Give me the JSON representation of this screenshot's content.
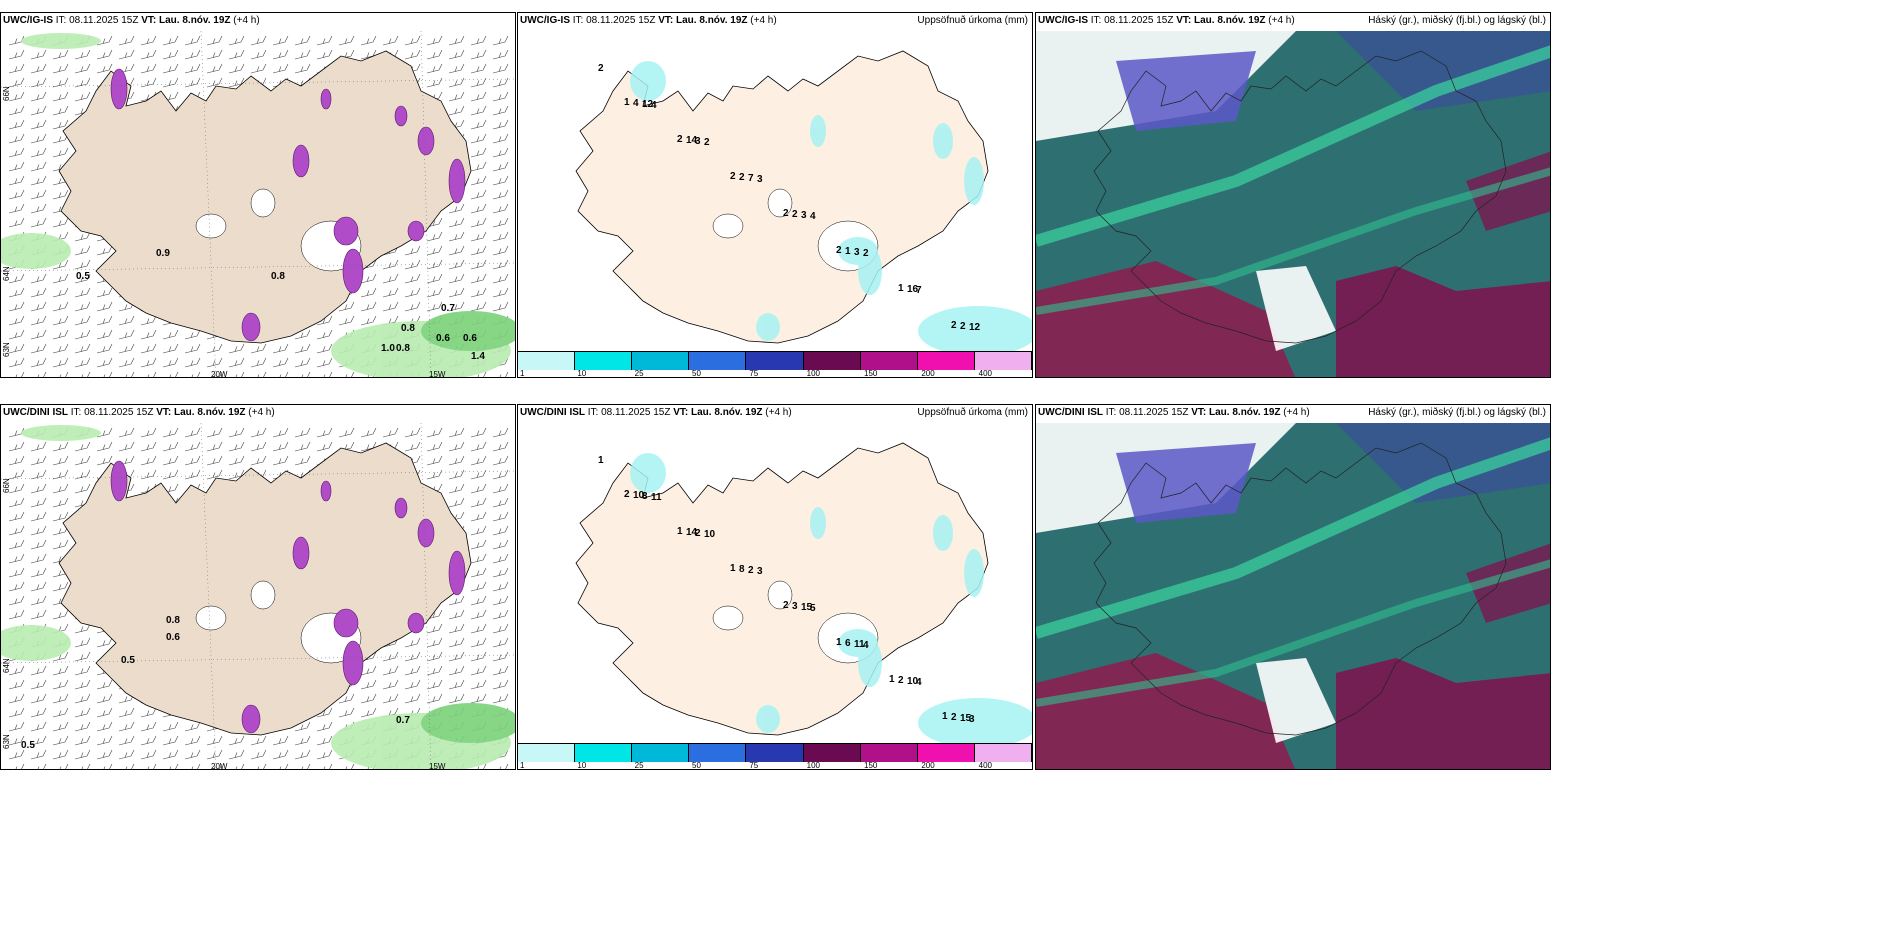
{
  "panels": [
    {
      "id": "p1",
      "model": "UWC/IG-IS",
      "it_label": "IT:",
      "it": "08.11.2025 15Z",
      "vt_label": "VT:",
      "vt": "Lau. 8.nóv. 19Z",
      "lead": "(+4 h)",
      "right_title": ""
    },
    {
      "id": "p2",
      "model": "UWC/IG-IS",
      "it_label": "IT:",
      "it": "08.11.2025 15Z",
      "vt_label": "VT:",
      "vt": "Lau. 8.nóv. 19Z",
      "lead": "(+4 h)",
      "right_title": "Uppsöfnuð úrkoma (mm)"
    },
    {
      "id": "p3",
      "model": "UWC/IG-IS",
      "it_label": "IT:",
      "it": "08.11.2025 15Z",
      "vt_label": "VT:",
      "vt": "Lau. 8.nóv. 19Z",
      "lead": "(+4 h)",
      "right_title": "Háský (gr.), miðský (fj.bl.) og lágský (bl.)"
    },
    {
      "id": "p4",
      "model": "UWC/DINI ISL",
      "it_label": "IT:",
      "it": "08.11.2025 15Z",
      "vt_label": "VT:",
      "vt": "Lau. 8.nóv. 19Z",
      "lead": "(+4 h)",
      "right_title": ""
    },
    {
      "id": "p5",
      "model": "UWC/DINI ISL",
      "it_label": "IT:",
      "it": "08.11.2025 15Z",
      "vt_label": "VT:",
      "vt": "Lau. 8.nóv. 19Z",
      "lead": "(+4 h)",
      "right_title": "Uppsöfnuð úrkoma (mm)"
    },
    {
      "id": "p6",
      "model": "UWC/DINI ISL",
      "it_label": "IT:",
      "it": "08.11.2025 15Z",
      "vt_label": "VT:",
      "vt": "Lau. 8.nóv. 19Z",
      "lead": "(+4 h)",
      "right_title": "Háský (gr.), miðský (fj.bl.) og lágský (bl.)"
    }
  ],
  "axes": {
    "lat_66": "66N",
    "lat_64": "64N",
    "lat_63": "63N",
    "lon_20": "20W",
    "lon_15": "15W"
  },
  "colorbar": {
    "ticks": [
      "1",
      "10",
      "25",
      "50",
      "75",
      "100",
      "150",
      "200",
      "400"
    ],
    "colors": [
      "#c8f7f7",
      "#00e5e5",
      "#00b8d8",
      "#2a6ee0",
      "#2838b0",
      "#6a0a50",
      "#b0108a",
      "#f010b0",
      "#f0b0f0"
    ]
  },
  "wind_labels_top": [
    "0.9",
    "0.8",
    "0.5",
    "0.7",
    "0.8",
    "0.6",
    "0.6",
    "1.0",
    "0.8",
    "1.4"
  ],
  "wind_labels_bot": [
    "0.8",
    "0.6",
    "0.5",
    "0.7",
    "0.5"
  ],
  "precip_labels_top": [
    "2",
    "4",
    "2",
    "3",
    "4",
    "2",
    "7",
    "12",
    "12",
    "3",
    "7",
    "3",
    "3",
    "16",
    "2",
    "4",
    "14",
    "2",
    "2",
    "1",
    "1",
    "2",
    "1",
    "2",
    "2",
    "2",
    "2"
  ],
  "precip_labels_bot": [
    "1",
    "11",
    "10",
    "3",
    "5",
    "4",
    "4",
    "3",
    "3",
    "2",
    "2",
    "15",
    "11",
    "10",
    "15",
    "10",
    "14",
    "8",
    "3",
    "6",
    "2",
    "2",
    "2",
    "1",
    "1",
    "2",
    "1",
    "1",
    "1"
  ]
}
